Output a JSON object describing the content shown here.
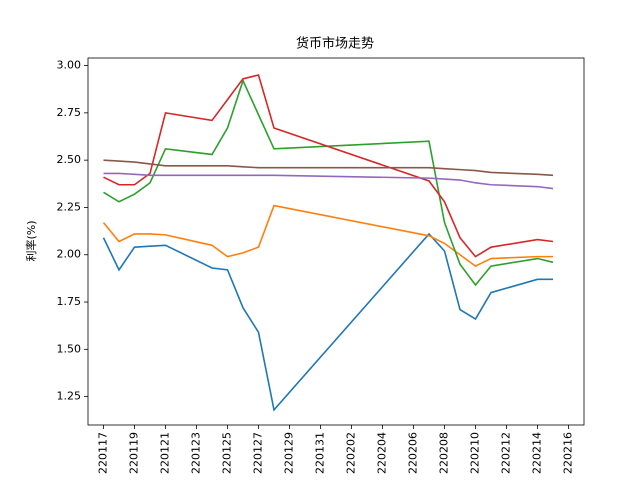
{
  "chart_data": {
    "type": "line",
    "title": "货币市场走势",
    "y_label": "利率(%)",
    "x": [
      "220117",
      "220118",
      "220119",
      "220120",
      "220121",
      "220124",
      "220125",
      "220126",
      "220127",
      "220128",
      "220207",
      "220208",
      "220209",
      "220210",
      "220211",
      "220214",
      "220215"
    ],
    "xlim": [
      "220116",
      "220217"
    ],
    "xticks": [
      "220117",
      "220119",
      "220121",
      "220123",
      "220125",
      "220127",
      "220129",
      "220131",
      "220202",
      "220204",
      "220206",
      "220208",
      "220210",
      "220212",
      "220214",
      "220216"
    ],
    "ylim": [
      1.1,
      3.04
    ],
    "yticks": [
      1.25,
      {
        "value": 1.5,
        "label": "1.50"
      },
      1.75,
      {
        "value": 2,
        "label": "2.00"
      },
      2.25,
      {
        "value": 2.5,
        "label": "2.50"
      },
      2.75,
      {
        "value": 3,
        "label": "3.00"
      }
    ],
    "series": [
      {
        "color": "#1f77b4",
        "values": [
          2.09,
          1.92,
          2.04,
          2.045,
          2.05,
          1.93,
          1.92,
          1.72,
          1.59,
          1.18,
          2.11,
          2.02,
          1.71,
          1.66,
          1.8,
          1.87,
          1.87
        ]
      },
      {
        "color": "#ff7f0e",
        "values": [
          2.17,
          2.07,
          2.11,
          2.11,
          2.105,
          2.05,
          1.99,
          2.01,
          2.04,
          2.26,
          2.1,
          2.06,
          2.0,
          1.94,
          1.98,
          1.99,
          1.99
        ]
      },
      {
        "color": "#2ca02c",
        "values": [
          2.33,
          2.28,
          2.32,
          2.38,
          2.56,
          2.53,
          2.67,
          2.92,
          2.74,
          2.56,
          2.6,
          2.17,
          1.95,
          1.84,
          1.94,
          1.98,
          1.96
        ]
      },
      {
        "color": "#d62728",
        "values": [
          2.41,
          2.37,
          2.37,
          2.43,
          2.75,
          2.71,
          2.82,
          2.93,
          2.95,
          2.67,
          2.39,
          2.28,
          2.09,
          1.99,
          2.04,
          2.08,
          2.07
        ]
      },
      {
        "color": "#9467bd",
        "values": [
          2.43,
          2.43,
          2.425,
          2.42,
          2.42,
          2.42,
          2.42,
          2.42,
          2.42,
          2.42,
          2.405,
          2.4,
          2.395,
          2.38,
          2.37,
          2.36,
          2.35
        ]
      },
      {
        "color": "#8c564b",
        "values": [
          2.5,
          2.495,
          2.49,
          2.48,
          2.47,
          2.47,
          2.47,
          2.465,
          2.46,
          2.46,
          2.46,
          2.455,
          2.45,
          2.445,
          2.435,
          2.425,
          2.42
        ]
      }
    ]
  }
}
